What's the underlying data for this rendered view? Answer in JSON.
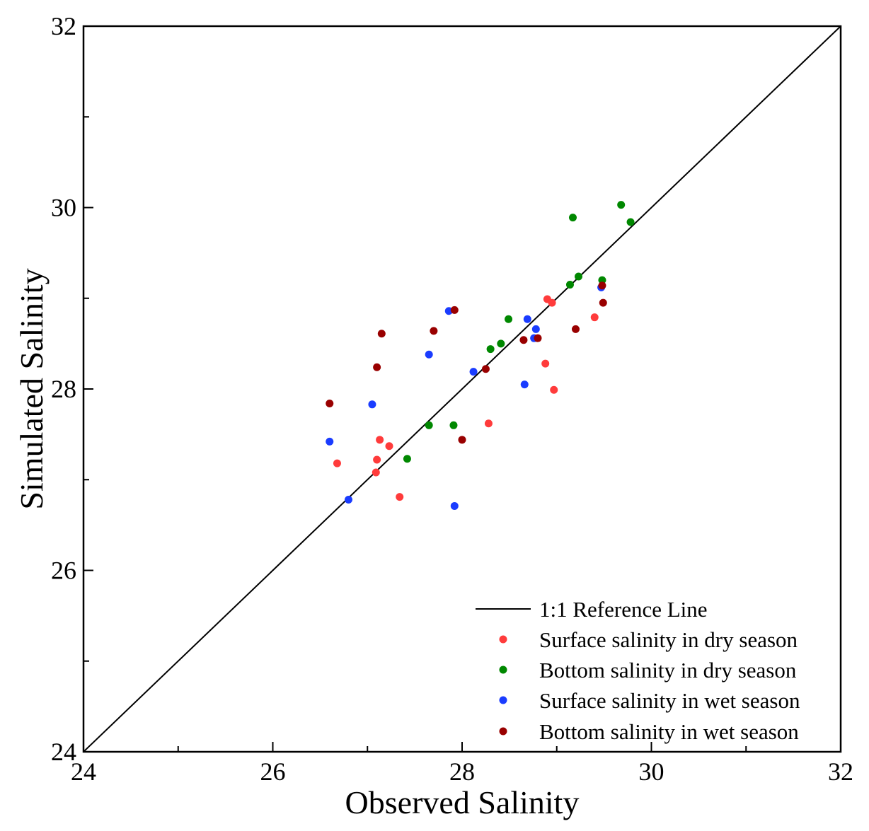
{
  "chart_data": {
    "type": "scatter",
    "title": "",
    "xlabel": "Observed Salinity",
    "ylabel": "Simulated Salinity",
    "xlim": [
      24,
      32
    ],
    "ylim": [
      24,
      32
    ],
    "x_ticks": [
      24,
      26,
      28,
      30,
      32
    ],
    "y_ticks": [
      24,
      26,
      28,
      30,
      32
    ],
    "grid": false,
    "legend_position": "bottom-right",
    "reference_line": {
      "name": "1:1 Reference Line",
      "from": [
        24,
        24
      ],
      "to": [
        32,
        32
      ],
      "color": "#000000"
    },
    "series": [
      {
        "name": "Surface salinity in dry season",
        "color": "#ff3b3b",
        "points": [
          [
            26.68,
            27.18
          ],
          [
            27.09,
            27.08
          ],
          [
            27.1,
            27.22
          ],
          [
            27.13,
            27.44
          ],
          [
            27.23,
            27.37
          ],
          [
            27.34,
            26.81
          ],
          [
            28.28,
            27.62
          ],
          [
            28.88,
            28.28
          ],
          [
            28.9,
            28.99
          ],
          [
            28.95,
            28.95
          ],
          [
            28.97,
            27.99
          ],
          [
            29.4,
            28.79
          ]
        ]
      },
      {
        "name": "Bottom salinity in dry season",
        "color": "#008800",
        "points": [
          [
            27.42,
            27.23
          ],
          [
            27.65,
            27.6
          ],
          [
            27.91,
            27.6
          ],
          [
            28.3,
            28.44
          ],
          [
            28.41,
            28.5
          ],
          [
            28.49,
            28.77
          ],
          [
            29.14,
            29.15
          ],
          [
            29.17,
            29.89
          ],
          [
            29.23,
            29.24
          ],
          [
            29.48,
            29.2
          ],
          [
            29.68,
            30.03
          ],
          [
            29.78,
            29.84
          ]
        ]
      },
      {
        "name": "Surface salinity in wet season",
        "color": "#1a3cff",
        "points": [
          [
            26.6,
            27.42
          ],
          [
            26.8,
            26.78
          ],
          [
            27.05,
            27.83
          ],
          [
            27.65,
            28.38
          ],
          [
            27.86,
            28.86
          ],
          [
            27.92,
            26.71
          ],
          [
            28.12,
            28.19
          ],
          [
            28.66,
            28.05
          ],
          [
            28.69,
            28.77
          ],
          [
            28.76,
            28.56
          ],
          [
            28.78,
            28.66
          ],
          [
            29.47,
            29.12
          ]
        ]
      },
      {
        "name": "Bottom salinity in wet season",
        "color": "#990000",
        "points": [
          [
            26.6,
            27.84
          ],
          [
            27.1,
            28.24
          ],
          [
            27.15,
            28.61
          ],
          [
            27.7,
            28.64
          ],
          [
            27.92,
            28.87
          ],
          [
            28.0,
            27.44
          ],
          [
            28.25,
            28.22
          ],
          [
            28.65,
            28.54
          ],
          [
            28.8,
            28.56
          ],
          [
            29.2,
            28.66
          ],
          [
            29.48,
            29.14
          ],
          [
            29.49,
            28.95
          ]
        ]
      }
    ]
  }
}
